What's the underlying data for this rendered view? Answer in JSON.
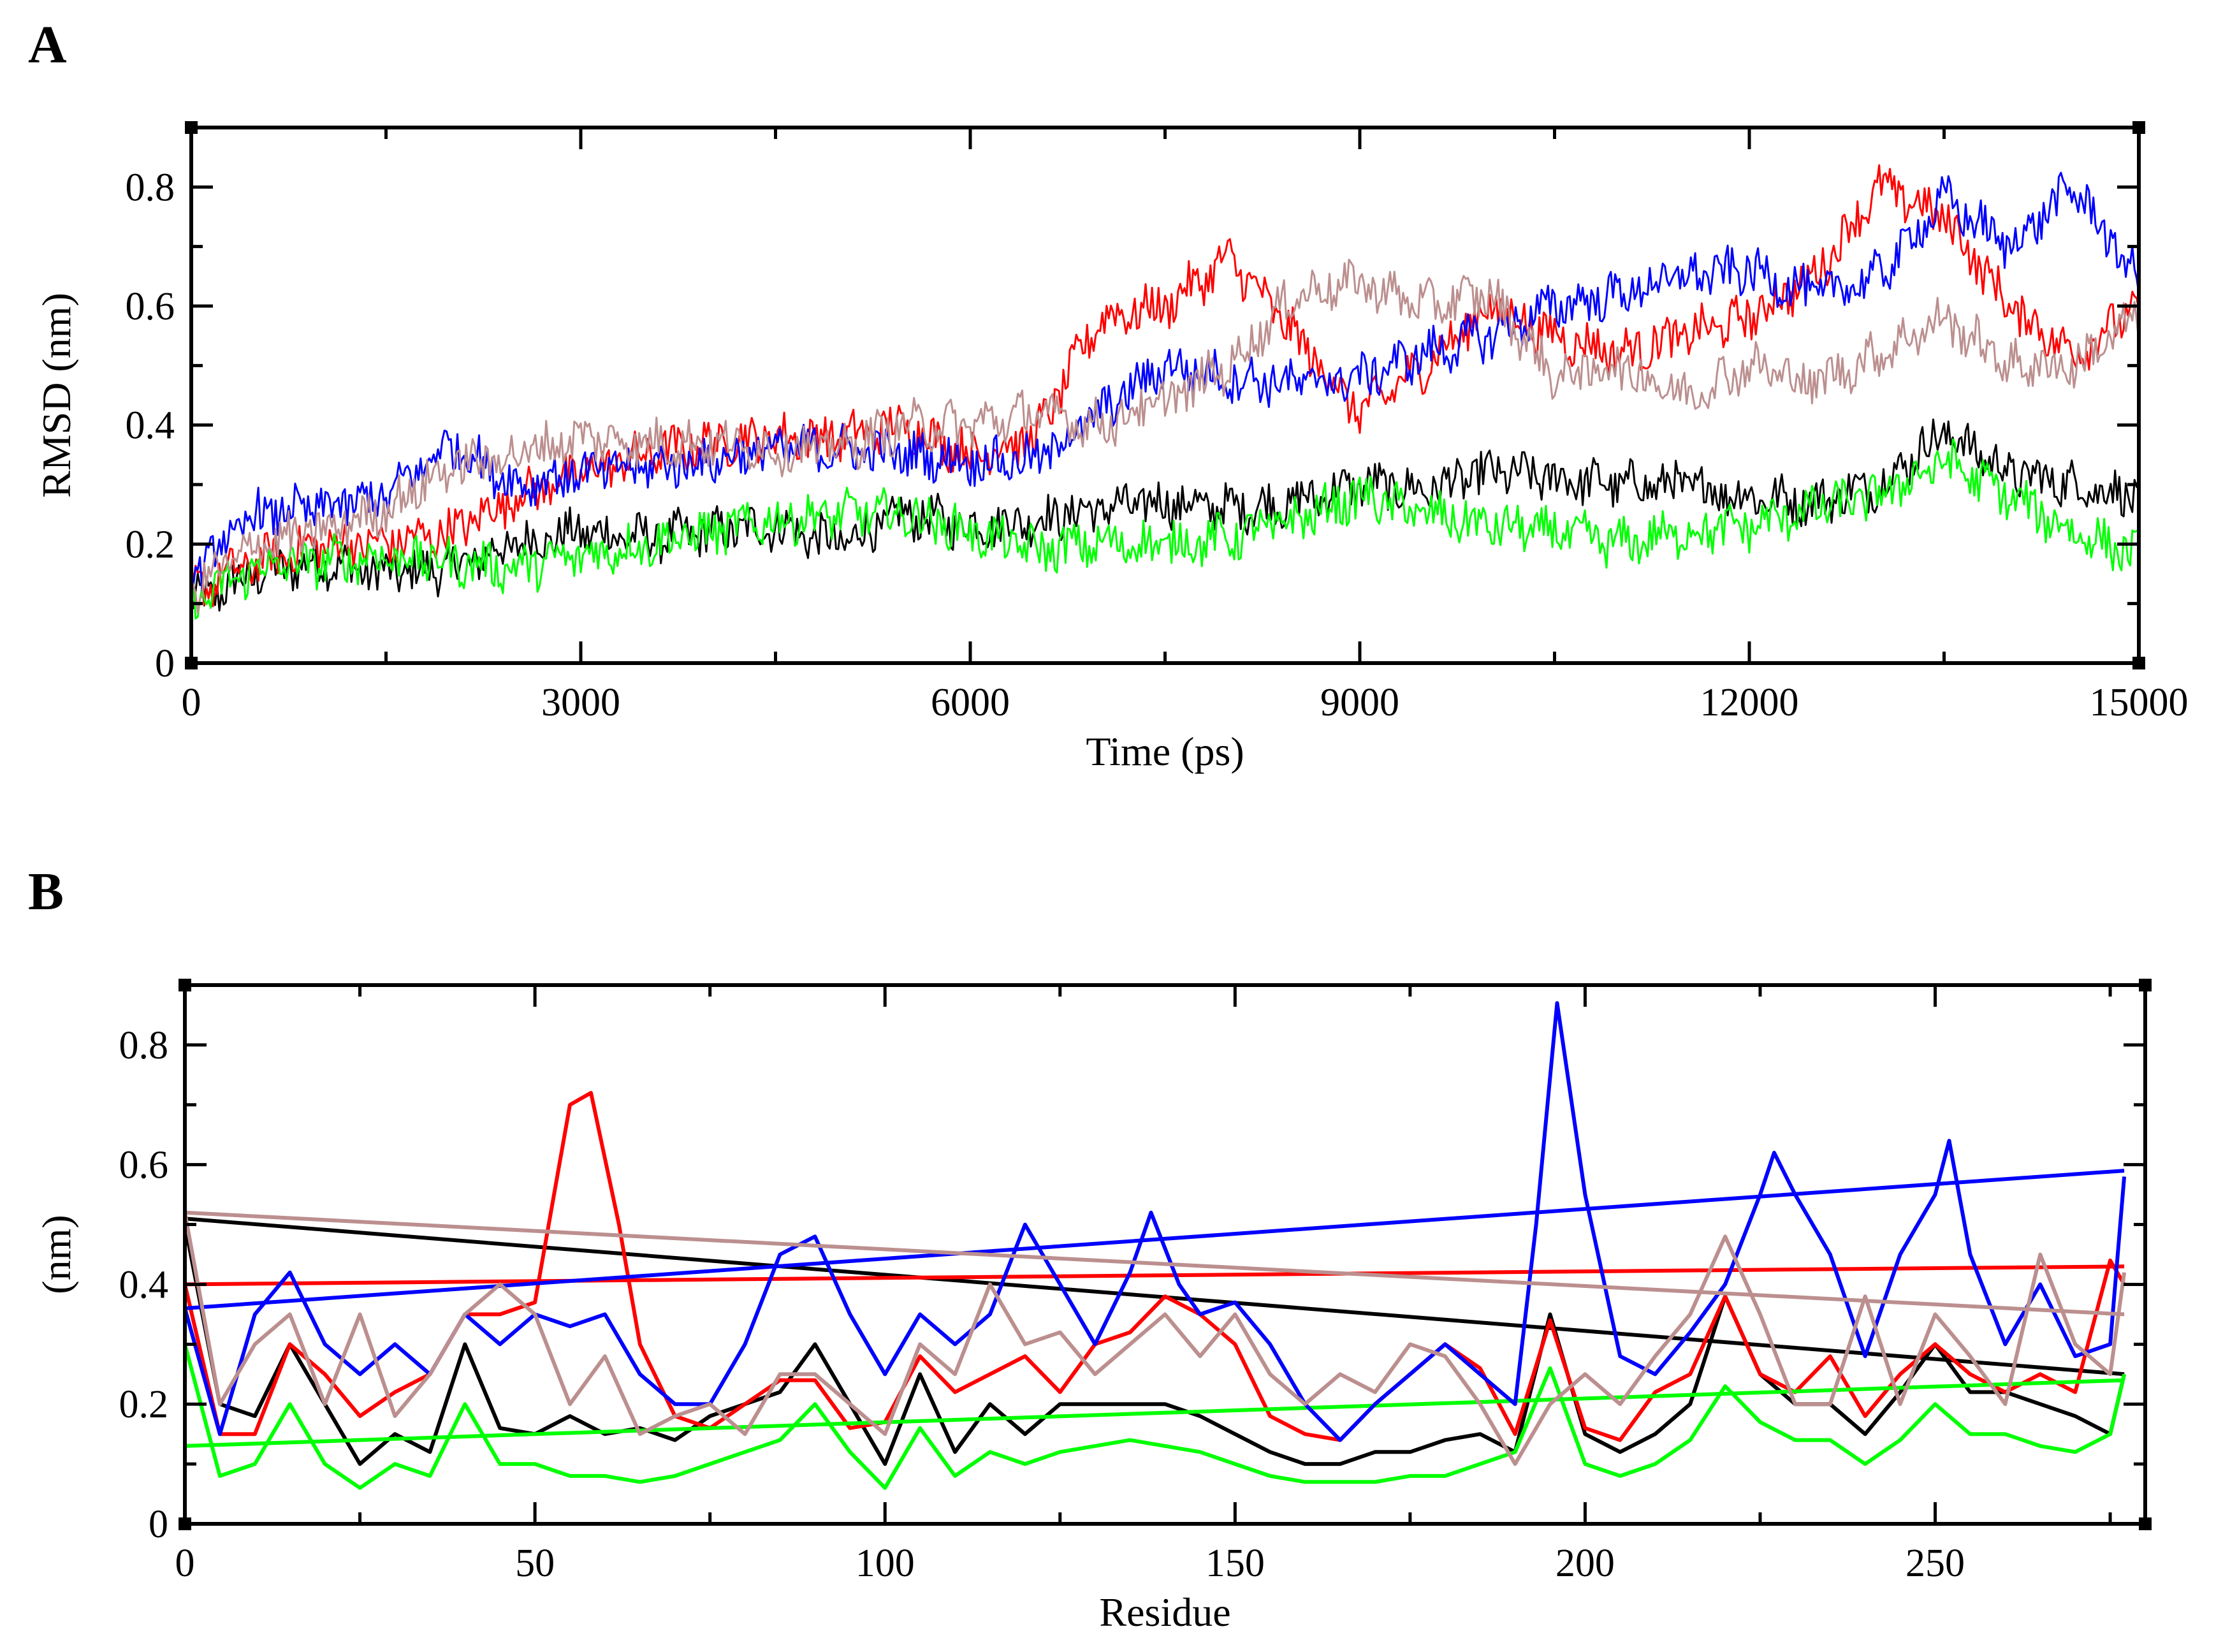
{
  "chart_data": [
    {
      "panel": "A",
      "type": "line",
      "title": "",
      "xlabel": "Time (ps)",
      "ylabel": "RMSD (nm)",
      "xlim": [
        0,
        15000
      ],
      "ylim": [
        0,
        0.9
      ],
      "xticks": [
        0,
        3000,
        6000,
        9000,
        12000,
        15000
      ],
      "xtick_labels": [
        "0",
        "3000",
        "6000",
        "9000",
        "12000",
        "15000"
      ],
      "yticks": [
        0,
        0.2,
        0.4,
        0.6,
        0.8
      ],
      "ytick_labels": [
        "0",
        "0.2",
        "0.4",
        "0.6",
        "0.8"
      ],
      "grid": false,
      "legend": "none",
      "series": [
        {
          "name": "black",
          "color": "#000000",
          "x": [
            0,
            500,
            1000,
            1500,
            2000,
            2500,
            3000,
            3500,
            4000,
            4500,
            5000,
            5500,
            6000,
            6500,
            7000,
            7500,
            8000,
            8500,
            9000,
            9500,
            10000,
            10500,
            11000,
            11500,
            12000,
            12500,
            13000,
            13500,
            14000,
            14500,
            15000
          ],
          "values": [
            0.1,
            0.15,
            0.17,
            0.15,
            0.16,
            0.2,
            0.22,
            0.21,
            0.22,
            0.23,
            0.2,
            0.25,
            0.23,
            0.24,
            0.26,
            0.27,
            0.26,
            0.27,
            0.3,
            0.29,
            0.32,
            0.31,
            0.3,
            0.3,
            0.28,
            0.27,
            0.3,
            0.39,
            0.32,
            0.3,
            0.28
          ]
        },
        {
          "name": "red",
          "color": "#ff0000",
          "x": [
            0,
            500,
            1000,
            1500,
            2000,
            2500,
            3000,
            3500,
            4000,
            4500,
            5000,
            5500,
            6000,
            6500,
            7000,
            7500,
            8000,
            8500,
            9000,
            9500,
            10000,
            10500,
            11000,
            11500,
            12000,
            12500,
            13000,
            13500,
            14000,
            14500,
            15000
          ],
          "values": [
            0.12,
            0.17,
            0.2,
            0.2,
            0.22,
            0.28,
            0.32,
            0.35,
            0.37,
            0.38,
            0.38,
            0.4,
            0.35,
            0.38,
            0.58,
            0.6,
            0.68,
            0.55,
            0.42,
            0.5,
            0.6,
            0.55,
            0.52,
            0.55,
            0.58,
            0.65,
            0.8,
            0.75,
            0.6,
            0.52,
            0.6
          ]
        },
        {
          "name": "green",
          "color": "#00ff00",
          "x": [
            0,
            500,
            1000,
            1500,
            2000,
            2500,
            3000,
            3500,
            4000,
            4500,
            5000,
            5500,
            6000,
            6500,
            7000,
            7500,
            8000,
            8500,
            9000,
            9500,
            10000,
            10500,
            11000,
            11500,
            12000,
            12500,
            13000,
            13500,
            14000,
            14500,
            15000
          ],
          "values": [
            0.1,
            0.16,
            0.17,
            0.18,
            0.17,
            0.16,
            0.18,
            0.2,
            0.22,
            0.24,
            0.25,
            0.25,
            0.22,
            0.19,
            0.2,
            0.2,
            0.21,
            0.24,
            0.28,
            0.25,
            0.23,
            0.22,
            0.2,
            0.22,
            0.23,
            0.26,
            0.28,
            0.34,
            0.28,
            0.22,
            0.18
          ]
        },
        {
          "name": "blue",
          "color": "#0000ff",
          "x": [
            0,
            500,
            1000,
            1500,
            2000,
            2500,
            3000,
            3500,
            4000,
            4500,
            5000,
            5500,
            6000,
            6500,
            7000,
            7500,
            8000,
            8500,
            9000,
            9500,
            10000,
            10500,
            11000,
            11500,
            12000,
            12500,
            13000,
            13500,
            14000,
            14500,
            15000
          ],
          "values": [
            0.15,
            0.25,
            0.26,
            0.28,
            0.37,
            0.3,
            0.32,
            0.33,
            0.34,
            0.36,
            0.36,
            0.35,
            0.34,
            0.34,
            0.42,
            0.5,
            0.48,
            0.47,
            0.48,
            0.52,
            0.55,
            0.6,
            0.62,
            0.65,
            0.66,
            0.62,
            0.65,
            0.78,
            0.7,
            0.8,
            0.64
          ]
        },
        {
          "name": "rosy-brown",
          "color": "#bc8f8f",
          "x": [
            0,
            500,
            1000,
            1500,
            2000,
            2500,
            3000,
            3500,
            4000,
            4500,
            5000,
            5500,
            6000,
            6500,
            7000,
            7500,
            8000,
            8500,
            9000,
            9500,
            10000,
            10500,
            11000,
            11500,
            12000,
            12500,
            13000,
            13500,
            14000,
            14500,
            15000
          ],
          "values": [
            0.12,
            0.2,
            0.22,
            0.26,
            0.33,
            0.35,
            0.38,
            0.37,
            0.37,
            0.36,
            0.36,
            0.4,
            0.4,
            0.42,
            0.4,
            0.44,
            0.5,
            0.62,
            0.64,
            0.6,
            0.62,
            0.48,
            0.5,
            0.45,
            0.5,
            0.47,
            0.52,
            0.58,
            0.5,
            0.5,
            0.58
          ]
        }
      ]
    },
    {
      "panel": "B",
      "type": "line",
      "title": "",
      "xlabel": "Residue",
      "ylabel": "(nm)",
      "xlim": [
        0,
        280
      ],
      "ylim": [
        0,
        0.9
      ],
      "xticks": [
        0,
        50,
        100,
        150,
        200,
        250
      ],
      "xtick_labels": [
        "0",
        "50",
        "100",
        "150",
        "200",
        "250"
      ],
      "yticks": [
        0,
        0.2,
        0.4,
        0.6,
        0.8
      ],
      "ytick_labels": [
        "0",
        "0.2",
        "0.4",
        "0.6",
        "0.8"
      ],
      "grid": false,
      "legend": "none",
      "series": [
        {
          "name": "black",
          "color": "#000000",
          "x": [
            0,
            5,
            10,
            15,
            20,
            25,
            30,
            35,
            40,
            45,
            50,
            55,
            60,
            65,
            70,
            75,
            80,
            85,
            90,
            95,
            100,
            105,
            110,
            115,
            120,
            125,
            130,
            135,
            140,
            145,
            150,
            155,
            160,
            165,
            170,
            175,
            180,
            185,
            190,
            195,
            200,
            205,
            210,
            215,
            220,
            225,
            230,
            235,
            240,
            245,
            250,
            255,
            260,
            265,
            270,
            275,
            277
          ],
          "values": [
            0.5,
            0.2,
            0.18,
            0.3,
            0.2,
            0.1,
            0.15,
            0.12,
            0.3,
            0.16,
            0.15,
            0.18,
            0.15,
            0.16,
            0.14,
            0.18,
            0.2,
            0.22,
            0.3,
            0.2,
            0.1,
            0.25,
            0.12,
            0.2,
            0.15,
            0.2,
            0.2,
            0.2,
            0.2,
            0.18,
            0.15,
            0.12,
            0.1,
            0.1,
            0.12,
            0.12,
            0.14,
            0.15,
            0.12,
            0.35,
            0.15,
            0.12,
            0.15,
            0.2,
            0.38,
            0.25,
            0.2,
            0.2,
            0.15,
            0.22,
            0.3,
            0.22,
            0.22,
            0.2,
            0.18,
            0.15,
            0.25
          ]
        },
        {
          "name": "black-trend",
          "color": "#000000",
          "x": [
            0,
            277
          ],
          "values": [
            0.51,
            0.25
          ]
        },
        {
          "name": "red",
          "color": "#ff0000",
          "x": [
            0,
            5,
            10,
            15,
            20,
            25,
            30,
            35,
            40,
            45,
            50,
            55,
            58,
            62,
            65,
            70,
            75,
            80,
            85,
            90,
            95,
            100,
            105,
            110,
            115,
            120,
            125,
            130,
            135,
            140,
            145,
            150,
            155,
            160,
            165,
            170,
            175,
            180,
            185,
            190,
            195,
            200,
            205,
            210,
            215,
            220,
            225,
            230,
            235,
            240,
            245,
            250,
            255,
            260,
            265,
            270,
            275,
            277
          ],
          "values": [
            0.4,
            0.15,
            0.15,
            0.3,
            0.25,
            0.18,
            0.22,
            0.25,
            0.35,
            0.35,
            0.37,
            0.7,
            0.72,
            0.5,
            0.3,
            0.18,
            0.16,
            0.2,
            0.24,
            0.24,
            0.16,
            0.17,
            0.28,
            0.22,
            0.25,
            0.28,
            0.22,
            0.3,
            0.32,
            0.38,
            0.35,
            0.3,
            0.18,
            0.15,
            0.14,
            0.2,
            0.25,
            0.3,
            0.26,
            0.15,
            0.34,
            0.16,
            0.14,
            0.22,
            0.25,
            0.38,
            0.25,
            0.22,
            0.28,
            0.18,
            0.25,
            0.3,
            0.25,
            0.22,
            0.25,
            0.22,
            0.44,
            0.4
          ]
        },
        {
          "name": "red-trend",
          "color": "#ff0000",
          "x": [
            0,
            277
          ],
          "values": [
            0.4,
            0.43
          ]
        },
        {
          "name": "green",
          "color": "#00ff00",
          "x": [
            0,
            5,
            10,
            15,
            20,
            25,
            30,
            35,
            40,
            45,
            50,
            55,
            60,
            65,
            70,
            75,
            80,
            85,
            90,
            95,
            100,
            105,
            110,
            115,
            120,
            125,
            130,
            135,
            140,
            145,
            150,
            155,
            160,
            165,
            170,
            175,
            180,
            185,
            190,
            195,
            200,
            205,
            210,
            215,
            220,
            225,
            230,
            235,
            240,
            245,
            250,
            255,
            260,
            265,
            270,
            275,
            277
          ],
          "values": [
            0.3,
            0.08,
            0.1,
            0.2,
            0.1,
            0.06,
            0.1,
            0.08,
            0.2,
            0.1,
            0.1,
            0.08,
            0.08,
            0.07,
            0.08,
            0.1,
            0.12,
            0.14,
            0.2,
            0.12,
            0.06,
            0.16,
            0.08,
            0.12,
            0.1,
            0.12,
            0.13,
            0.14,
            0.13,
            0.12,
            0.1,
            0.08,
            0.07,
            0.07,
            0.07,
            0.08,
            0.08,
            0.1,
            0.12,
            0.26,
            0.1,
            0.08,
            0.1,
            0.14,
            0.23,
            0.17,
            0.14,
            0.14,
            0.1,
            0.14,
            0.2,
            0.15,
            0.15,
            0.13,
            0.12,
            0.15,
            0.25
          ]
        },
        {
          "name": "green-trend",
          "color": "#00ff00",
          "x": [
            0,
            277
          ],
          "values": [
            0.13,
            0.24
          ]
        },
        {
          "name": "blue",
          "color": "#0000ff",
          "x": [
            0,
            5,
            10,
            15,
            20,
            25,
            30,
            35,
            40,
            45,
            50,
            55,
            60,
            65,
            70,
            75,
            80,
            85,
            90,
            95,
            100,
            105,
            110,
            115,
            120,
            125,
            130,
            135,
            138,
            142,
            145,
            150,
            155,
            160,
            165,
            170,
            175,
            180,
            185,
            190,
            193,
            196,
            200,
            205,
            210,
            215,
            220,
            225,
            227,
            230,
            235,
            240,
            245,
            250,
            252,
            255,
            260,
            265,
            270,
            275,
            277
          ],
          "values": [
            0.36,
            0.15,
            0.35,
            0.42,
            0.3,
            0.25,
            0.3,
            0.25,
            0.35,
            0.3,
            0.35,
            0.33,
            0.35,
            0.25,
            0.2,
            0.2,
            0.3,
            0.45,
            0.48,
            0.35,
            0.25,
            0.35,
            0.3,
            0.35,
            0.5,
            0.4,
            0.3,
            0.42,
            0.52,
            0.4,
            0.35,
            0.37,
            0.3,
            0.2,
            0.14,
            0.2,
            0.25,
            0.3,
            0.25,
            0.2,
            0.5,
            0.87,
            0.55,
            0.28,
            0.25,
            0.32,
            0.4,
            0.55,
            0.62,
            0.55,
            0.45,
            0.28,
            0.45,
            0.55,
            0.64,
            0.45,
            0.3,
            0.4,
            0.28,
            0.3,
            0.58
          ]
        },
        {
          "name": "blue-trend",
          "color": "#0000ff",
          "x": [
            0,
            277
          ],
          "values": [
            0.36,
            0.59
          ]
        },
        {
          "name": "rosy-brown",
          "color": "#bc8f8f",
          "x": [
            0,
            5,
            10,
            15,
            20,
            25,
            30,
            35,
            40,
            45,
            50,
            55,
            60,
            65,
            70,
            75,
            80,
            85,
            90,
            95,
            100,
            105,
            110,
            115,
            120,
            125,
            130,
            135,
            140,
            145,
            150,
            155,
            160,
            165,
            170,
            175,
            180,
            185,
            190,
            195,
            200,
            205,
            210,
            215,
            220,
            225,
            230,
            235,
            240,
            245,
            250,
            255,
            260,
            265,
            270,
            275,
            277
          ],
          "values": [
            0.52,
            0.2,
            0.3,
            0.35,
            0.2,
            0.35,
            0.18,
            0.25,
            0.35,
            0.4,
            0.35,
            0.2,
            0.28,
            0.15,
            0.18,
            0.2,
            0.15,
            0.25,
            0.25,
            0.2,
            0.15,
            0.3,
            0.25,
            0.4,
            0.3,
            0.32,
            0.25,
            0.3,
            0.35,
            0.28,
            0.35,
            0.25,
            0.2,
            0.25,
            0.22,
            0.3,
            0.28,
            0.2,
            0.1,
            0.2,
            0.25,
            0.2,
            0.28,
            0.35,
            0.48,
            0.35,
            0.2,
            0.2,
            0.38,
            0.2,
            0.35,
            0.28,
            0.2,
            0.45,
            0.3,
            0.25,
            0.42
          ]
        },
        {
          "name": "rosy-brown-trend",
          "color": "#bc8f8f",
          "x": [
            0,
            277
          ],
          "values": [
            0.52,
            0.35
          ]
        }
      ]
    }
  ],
  "panels": {
    "a_label": "A",
    "b_label": "B"
  }
}
